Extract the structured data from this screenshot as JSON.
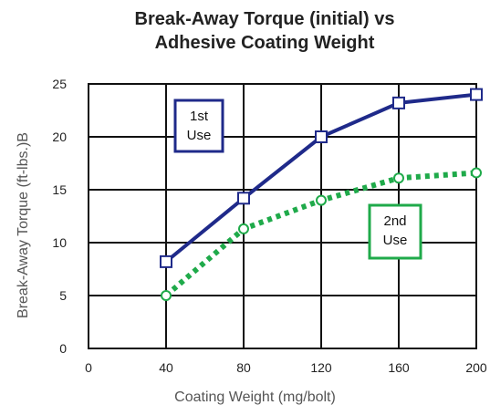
{
  "chart_data": {
    "type": "line",
    "title_lines": [
      "Break-Away Torque (initial) vs",
      "Adhesive Coating Weight"
    ],
    "xlabel": "Coating Weight (mg/bolt)",
    "ylabel": "Break-Away Torque (ft-lbs.)B",
    "xlim": [
      0,
      200
    ],
    "ylim": [
      0,
      25
    ],
    "x_ticks": [
      0,
      40,
      80,
      120,
      160,
      200
    ],
    "y_ticks": [
      0,
      5,
      10,
      15,
      20,
      25
    ],
    "grid": true,
    "series": [
      {
        "name": "1st Use",
        "label_lines": [
          "1st",
          "Use"
        ],
        "color": "#1f2a8a",
        "line_style": "solid",
        "marker": "square",
        "x": [
          40,
          80,
          120,
          160,
          200
        ],
        "y": [
          8.2,
          14.2,
          20.0,
          23.2,
          24.0
        ]
      },
      {
        "name": "2nd Use",
        "label_lines": [
          "2nd",
          "Use"
        ],
        "color": "#1faa4a",
        "line_style": "dotted",
        "marker": "circle",
        "x": [
          40,
          80,
          120,
          160,
          200
        ],
        "y": [
          5.0,
          11.3,
          14.0,
          16.1,
          16.6
        ]
      }
    ]
  }
}
